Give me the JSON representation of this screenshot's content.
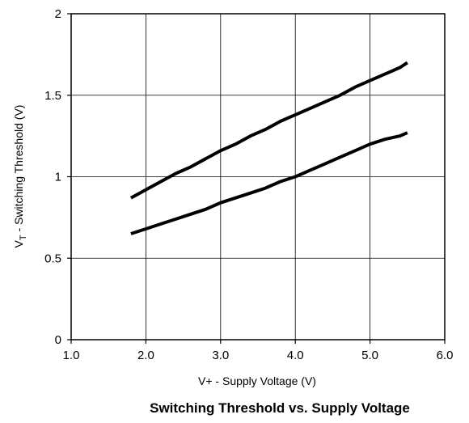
{
  "chart_data": {
    "type": "line",
    "title": "Switching Threshold vs. Supply Voltage",
    "xlabel": "V+ - Supply Voltage (V)",
    "ylabel_main": "V",
    "ylabel_sub": "T",
    "ylabel_rest": " - Switching Threshold (V)",
    "xlim": [
      1.0,
      6.0
    ],
    "ylim": [
      0,
      2
    ],
    "xticks": [
      "1.0",
      "2.0",
      "3.0",
      "4.0",
      "5.0",
      "6.0"
    ],
    "yticks": [
      "0",
      "0.5",
      "1",
      "1.5",
      "2"
    ],
    "grid": true,
    "line_color": "#000000",
    "series": [
      {
        "x": [
          1.8,
          2.0,
          2.2,
          2.4,
          2.6,
          2.8,
          3.0,
          3.2,
          3.4,
          3.6,
          3.8,
          4.0,
          4.2,
          4.4,
          4.6,
          4.8,
          5.0,
          5.2,
          5.4,
          5.5
        ],
        "values": [
          0.87,
          0.92,
          0.97,
          1.02,
          1.06,
          1.11,
          1.16,
          1.2,
          1.25,
          1.29,
          1.34,
          1.38,
          1.42,
          1.46,
          1.5,
          1.55,
          1.59,
          1.63,
          1.67,
          1.7
        ]
      },
      {
        "x": [
          1.8,
          2.0,
          2.2,
          2.4,
          2.6,
          2.8,
          3.0,
          3.2,
          3.4,
          3.6,
          3.8,
          4.0,
          4.2,
          4.4,
          4.6,
          4.8,
          5.0,
          5.2,
          5.4,
          5.5
        ],
        "values": [
          0.65,
          0.68,
          0.71,
          0.74,
          0.77,
          0.8,
          0.84,
          0.87,
          0.9,
          0.93,
          0.97,
          1.0,
          1.04,
          1.08,
          1.12,
          1.16,
          1.2,
          1.23,
          1.25,
          1.27
        ]
      }
    ]
  }
}
